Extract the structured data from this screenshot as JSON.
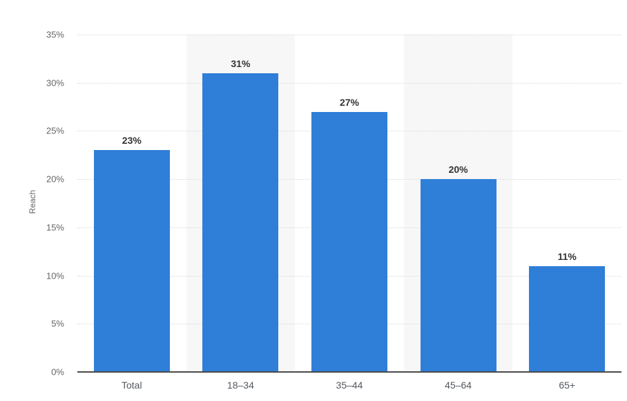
{
  "chart_data": {
    "type": "bar",
    "title": "",
    "categories": [
      "Total",
      "18–34",
      "35–44",
      "45–64",
      "65+"
    ],
    "values": [
      23,
      31,
      27,
      20,
      11
    ],
    "value_labels": [
      "23%",
      "31%",
      "27%",
      "20%",
      "11%"
    ],
    "xlabel": "",
    "ylabel": "Reach",
    "ylim": [
      0,
      35
    ],
    "ytick_step": 5,
    "yticks": [
      0,
      5,
      10,
      15,
      20,
      25,
      30,
      35
    ],
    "ytick_labels": [
      "0%",
      "5%",
      "10%",
      "15%",
      "20%",
      "25%",
      "30%",
      "35%"
    ],
    "grid": "horizontal-dotted",
    "legend": "none",
    "banded_category_indices": [
      1,
      3
    ]
  },
  "style": {
    "bar_color": "#2f7ed8",
    "plot_band_color": "#f7f7f7",
    "gridline_color": "#d9d9d9",
    "axis_line_color": "#4a4a4a",
    "tick_label_color": "#666666",
    "category_label_color": "#54585d",
    "value_label_color": "#333333",
    "y_axis_title_color": "#666666",
    "background_color": "#ffffff"
  }
}
